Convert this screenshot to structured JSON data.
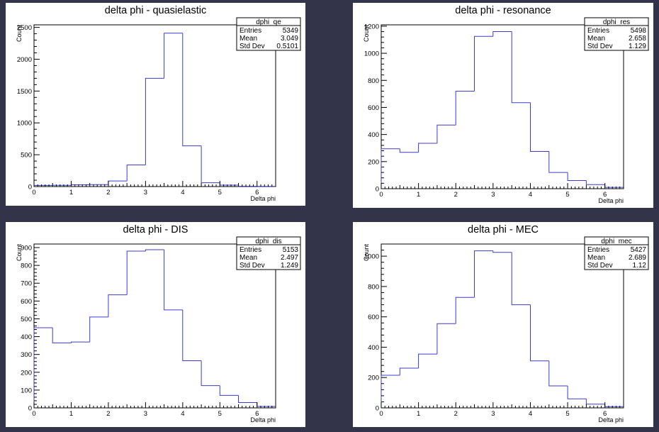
{
  "chart_data": [
    {
      "type": "bar",
      "title": "delta phi - quasielastic",
      "xlabel": "Delta phi",
      "ylabel": "Count",
      "xlim": [
        0,
        6.5
      ],
      "ylim": [
        0,
        2540
      ],
      "xticks": [
        0,
        1,
        2,
        3,
        4,
        5,
        6
      ],
      "yticks": [
        0,
        500,
        1000,
        1500,
        2000,
        2500
      ],
      "bin_width": 0.5,
      "values": [
        18,
        20,
        28,
        30,
        88,
        340,
        1700,
        2410,
        640,
        60,
        22,
        5,
        2
      ],
      "stats": {
        "name": "dphi_qe",
        "entries_label": "Entries",
        "entries": "5349",
        "mean_label": "Mean",
        "mean": "3.049",
        "std_label": "Std Dev",
        "std": "0.5101"
      }
    },
    {
      "type": "bar",
      "title": "delta phi - resonance",
      "xlabel": "Delta phi",
      "ylabel": "Count",
      "xlim": [
        0,
        6.5
      ],
      "ylim": [
        0,
        1210
      ],
      "xticks": [
        0,
        1,
        2,
        3,
        4,
        5,
        6
      ],
      "yticks": [
        0,
        200,
        400,
        600,
        800,
        1000,
        1200
      ],
      "bin_width": 0.5,
      "values": [
        295,
        268,
        335,
        470,
        720,
        1125,
        1160,
        635,
        275,
        120,
        60,
        30,
        10
      ],
      "stats": {
        "name": "dphi_res",
        "entries_label": "Entries",
        "entries": "5498",
        "mean_label": "Mean",
        "mean": "2.658",
        "std_label": "Std Dev",
        "std": "1.129"
      }
    },
    {
      "type": "bar",
      "title": "delta phi - DIS",
      "xlabel": "Delta phi",
      "ylabel": "Count",
      "xlim": [
        0,
        6.5
      ],
      "ylim": [
        0,
        920
      ],
      "xticks": [
        0,
        1,
        2,
        3,
        4,
        5,
        6
      ],
      "yticks": [
        0,
        100,
        200,
        300,
        400,
        500,
        600,
        700,
        800,
        900
      ],
      "bin_width": 0.5,
      "values": [
        450,
        365,
        370,
        510,
        635,
        880,
        888,
        550,
        265,
        125,
        70,
        30,
        8
      ],
      "stats": {
        "name": "dphi_dis",
        "entries_label": "Entries",
        "entries": "5153",
        "mean_label": "Mean",
        "mean": "2.497",
        "std_label": "Std Dev",
        "std": "1.249"
      }
    },
    {
      "type": "bar",
      "title": "delta phi - MEC",
      "xlabel": "Delta phi",
      "ylabel": "Count",
      "xlim": [
        0,
        6.5
      ],
      "ylim": [
        0,
        1080
      ],
      "xticks": [
        0,
        1,
        2,
        3,
        4,
        5,
        6
      ],
      "yticks": [
        0,
        200,
        400,
        600,
        800,
        1000
      ],
      "bin_width": 0.5,
      "values": [
        215,
        262,
        355,
        555,
        728,
        1035,
        1025,
        680,
        310,
        145,
        60,
        25,
        8
      ],
      "stats": {
        "name": "dphi_mec",
        "entries_label": "Entries",
        "entries": "5427",
        "mean_label": "Mean",
        "mean": "2.689",
        "std_label": "Std Dev",
        "std": "1.12"
      }
    }
  ],
  "colors": {
    "histogram_line": "#3b3bd0",
    "frame": "#000000",
    "background": "#ffffff"
  }
}
